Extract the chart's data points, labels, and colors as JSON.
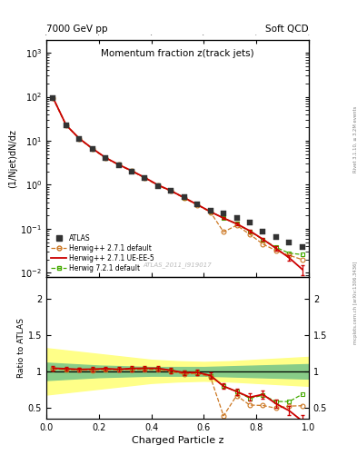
{
  "title_main": "Momentum fraction z(track jets)",
  "title_top_left": "7000 GeV pp",
  "title_top_right": "Soft QCD",
  "ylabel_main": "(1/Njet)dN/dz",
  "ylabel_ratio": "Ratio to ATLAS",
  "xlabel": "Charged Particle z",
  "watermark": "ATLAS_2011_I919017",
  "right_label_top": "Rivet 3.1.10, ≥ 3.2M events",
  "right_label_bottom": "mcplots.cern.ch [arXiv:1306.3436]",
  "atlas_x": [
    0.025,
    0.075,
    0.125,
    0.175,
    0.225,
    0.275,
    0.325,
    0.375,
    0.425,
    0.475,
    0.525,
    0.575,
    0.625,
    0.675,
    0.725,
    0.775,
    0.825,
    0.875,
    0.925,
    0.975
  ],
  "atlas_y": [
    92.0,
    22.0,
    11.0,
    6.5,
    4.0,
    2.8,
    2.0,
    1.4,
    0.95,
    0.72,
    0.52,
    0.36,
    0.26,
    0.22,
    0.18,
    0.14,
    0.085,
    0.065,
    0.048,
    0.038
  ],
  "atlas_yerr": [
    2.0,
    0.5,
    0.3,
    0.2,
    0.1,
    0.08,
    0.06,
    0.04,
    0.03,
    0.02,
    0.015,
    0.01,
    0.008,
    0.007,
    0.006,
    0.005,
    0.003,
    0.002,
    0.002,
    0.002
  ],
  "hw271d_x": [
    0.025,
    0.075,
    0.125,
    0.175,
    0.225,
    0.275,
    0.325,
    0.375,
    0.425,
    0.475,
    0.525,
    0.575,
    0.625,
    0.675,
    0.725,
    0.775,
    0.825,
    0.875,
    0.925,
    0.975
  ],
  "hw271d_y": [
    95.0,
    22.5,
    11.2,
    6.6,
    4.1,
    2.85,
    2.05,
    1.43,
    0.97,
    0.72,
    0.5,
    0.35,
    0.24,
    0.085,
    0.12,
    0.075,
    0.045,
    0.032,
    0.025,
    0.02
  ],
  "hw271ue_x": [
    0.025,
    0.075,
    0.125,
    0.175,
    0.225,
    0.275,
    0.325,
    0.375,
    0.425,
    0.475,
    0.525,
    0.575,
    0.625,
    0.675,
    0.725,
    0.775,
    0.825,
    0.875,
    0.925,
    0.975
  ],
  "hw271ue_y": [
    96.0,
    22.8,
    11.3,
    6.7,
    4.15,
    2.88,
    2.08,
    1.46,
    0.99,
    0.73,
    0.51,
    0.355,
    0.245,
    0.175,
    0.13,
    0.09,
    0.058,
    0.036,
    0.022,
    0.012
  ],
  "hw271ue_yerr": [
    3.0,
    0.6,
    0.3,
    0.2,
    0.12,
    0.09,
    0.07,
    0.05,
    0.035,
    0.025,
    0.018,
    0.013,
    0.01,
    0.009,
    0.008,
    0.007,
    0.005,
    0.004,
    0.003,
    0.003
  ],
  "hw721d_x": [
    0.025,
    0.075,
    0.125,
    0.175,
    0.225,
    0.275,
    0.325,
    0.375,
    0.425,
    0.475,
    0.525,
    0.575,
    0.625,
    0.675,
    0.725,
    0.775,
    0.825,
    0.875,
    0.925,
    0.975
  ],
  "hw721d_y": [
    95.5,
    22.6,
    11.25,
    6.65,
    4.12,
    2.87,
    2.07,
    1.45,
    0.98,
    0.73,
    0.51,
    0.355,
    0.245,
    0.175,
    0.13,
    0.088,
    0.057,
    0.038,
    0.028,
    0.026
  ],
  "atlas_color": "#333333",
  "hw271d_color": "#cc7722",
  "hw271ue_color": "#cc0000",
  "hw721d_color": "#44aa00",
  "band_x": [
    0.0,
    0.1,
    0.2,
    0.3,
    0.4,
    0.5,
    0.6,
    0.7,
    0.8,
    0.9,
    1.0
  ],
  "band_green_lo": [
    0.88,
    0.9,
    0.92,
    0.93,
    0.94,
    0.94,
    0.94,
    0.93,
    0.92,
    0.91,
    0.9
  ],
  "band_green_hi": [
    1.12,
    1.1,
    1.08,
    1.07,
    1.06,
    1.06,
    1.06,
    1.07,
    1.08,
    1.09,
    1.1
  ],
  "band_yellow_lo": [
    0.68,
    0.72,
    0.76,
    0.8,
    0.84,
    0.86,
    0.87,
    0.86,
    0.84,
    0.82,
    0.8
  ],
  "band_yellow_hi": [
    1.32,
    1.28,
    1.24,
    1.2,
    1.16,
    1.14,
    1.13,
    1.14,
    1.16,
    1.18,
    1.2
  ],
  "ylim_main": [
    0.008,
    2000
  ],
  "ylim_ratio": [
    0.35,
    2.3
  ],
  "xlim": [
    0.0,
    1.0
  ]
}
